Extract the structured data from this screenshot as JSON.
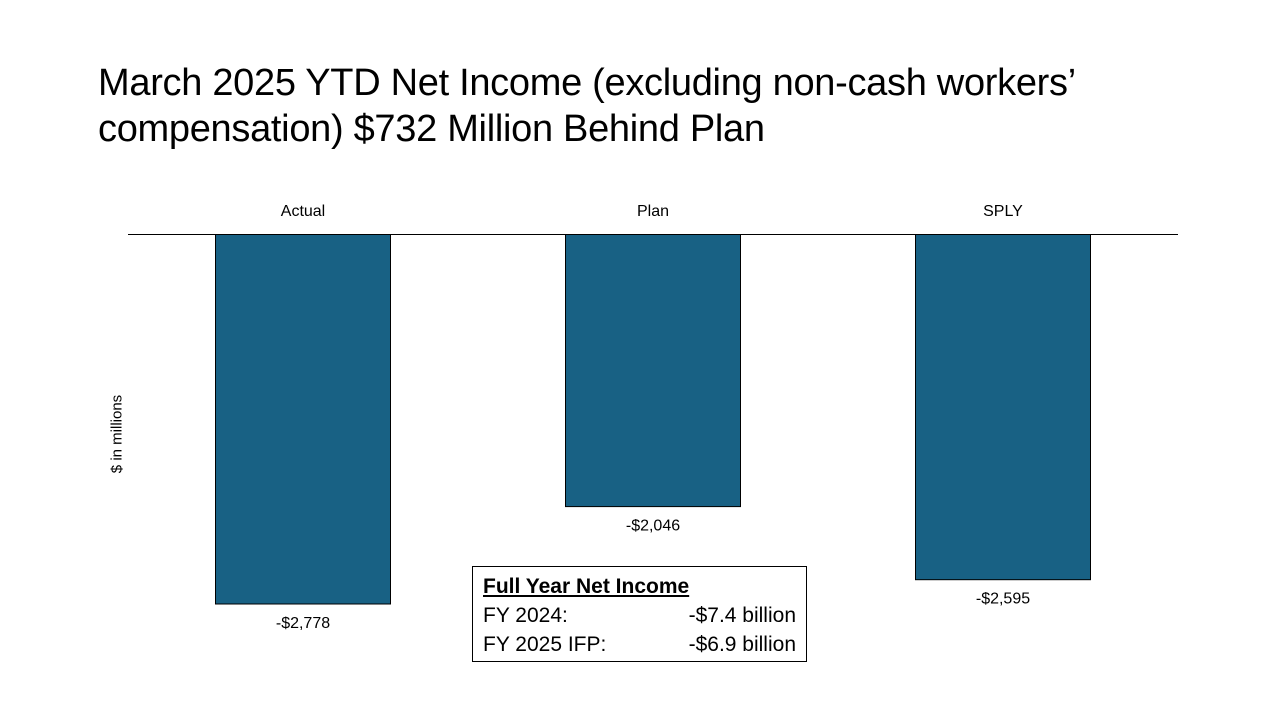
{
  "title": "March 2025 YTD Net Income (excluding non-cash workers’ compensation) $732 Million Behind Plan",
  "chart_data": {
    "type": "bar",
    "categories": [
      "Actual",
      "Plan",
      "SPLY"
    ],
    "values": [
      -2778,
      -2046,
      -2595
    ],
    "value_labels": [
      "-$2,778",
      "-$2,046",
      "-$2,595"
    ],
    "ylabel": "$ in millions",
    "ylim": [
      -3000,
      0
    ],
    "grid": false,
    "bar_color": "#186184",
    "category_axis_position": "top"
  },
  "info_box": {
    "heading": "Full Year Net Income",
    "rows": [
      {
        "label": "FY 2024:",
        "value": "-$7.4 billion"
      },
      {
        "label": "FY 2025 IFP:",
        "value": "-$6.9 billion"
      }
    ]
  }
}
